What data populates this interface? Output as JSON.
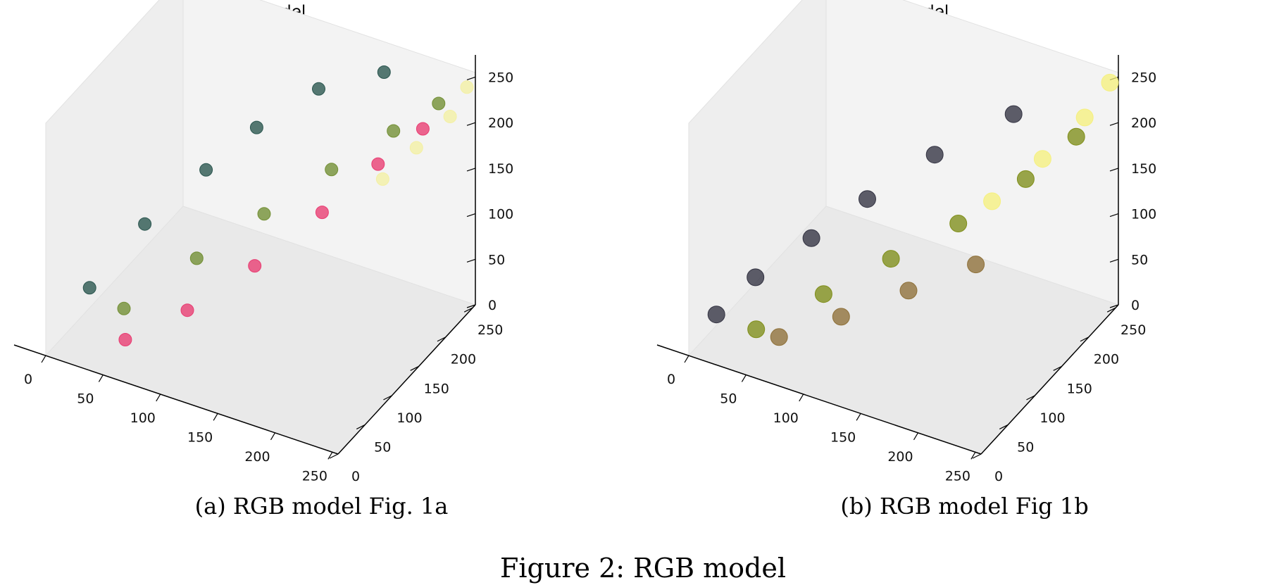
{
  "figure_caption": "Figure 2: RGB model",
  "chart_data": [
    {
      "type": "scatter",
      "title": "RGB model",
      "caption": "(a) RGB model Fig. 1a",
      "dimension": "3d",
      "x_ticks": [
        "0",
        "50",
        "100",
        "150",
        "200",
        "250"
      ],
      "y_ticks": [
        "0",
        "50",
        "100",
        "150",
        "200",
        "250"
      ],
      "z_ticks": [
        "0",
        "50",
        "100",
        "150",
        "200",
        "250"
      ],
      "xlim": [
        0,
        255
      ],
      "ylim": [
        0,
        255
      ],
      "zlim": [
        0,
        255
      ],
      "series": [
        {
          "color": "#1f4d46",
          "points": [
            [
              10,
              60,
              40
            ],
            [
              30,
              120,
              80
            ],
            [
              60,
              170,
              120
            ],
            [
              90,
              200,
              160
            ],
            [
              130,
              230,
              200
            ],
            [
              180,
              245,
              230
            ]
          ]
        },
        {
          "color": "#6b8a2a",
          "points": [
            [
              40,
              60,
              30
            ],
            [
              80,
              110,
              70
            ],
            [
              120,
              150,
              110
            ],
            [
              160,
              190,
              150
            ],
            [
              200,
              220,
              190
            ],
            [
              230,
              240,
              220
            ]
          ]
        },
        {
          "color": "#e8336b",
          "points": [
            [
              60,
              20,
              30
            ],
            [
              100,
              50,
              60
            ],
            [
              140,
              90,
              100
            ],
            [
              180,
              130,
              150
            ],
            [
              210,
              170,
              190
            ],
            [
              235,
              200,
              220
            ]
          ]
        },
        {
          "color": "#f3f0a0",
          "points": [
            [
              200,
              200,
              150
            ],
            [
              220,
              220,
              180
            ],
            [
              240,
              240,
              210
            ],
            [
              250,
              250,
              240
            ]
          ]
        }
      ]
    },
    {
      "type": "scatter",
      "title": "RGB model",
      "caption": "(b) RGB model Fig 1b",
      "dimension": "3d",
      "x_ticks": [
        "0",
        "50",
        "100",
        "150",
        "200",
        "250"
      ],
      "y_ticks": [
        "0",
        "50",
        "100",
        "150",
        "200",
        "250"
      ],
      "z_ticks": [
        "0",
        "50",
        "100",
        "150",
        "200",
        "250"
      ],
      "xlim": [
        0,
        255
      ],
      "ylim": [
        0,
        255
      ],
      "zlim": [
        0,
        255
      ],
      "series": [
        {
          "color": "#2a2a3a",
          "points": [
            [
              10,
              30,
              30
            ],
            [
              30,
              60,
              60
            ],
            [
              60,
              100,
              90
            ],
            [
              90,
              140,
              120
            ],
            [
              130,
              180,
              160
            ],
            [
              180,
              220,
              200
            ]
          ]
        },
        {
          "color": "#7a8a10",
          "points": [
            [
              40,
              40,
              20
            ],
            [
              80,
              80,
              50
            ],
            [
              120,
              120,
              80
            ],
            [
              160,
              160,
              110
            ],
            [
              200,
              200,
              150
            ],
            [
              230,
              230,
              190
            ]
          ]
        },
        {
          "color": "#f5f07a",
          "points": [
            [
              180,
              180,
              130
            ],
            [
              210,
              210,
              170
            ],
            [
              235,
              235,
              210
            ],
            [
              250,
              250,
              245
            ]
          ]
        },
        {
          "color": "#8a6a30",
          "points": [
            [
              60,
              40,
              20
            ],
            [
              100,
              70,
              40
            ],
            [
              140,
              110,
              60
            ],
            [
              180,
              150,
              80
            ]
          ]
        }
      ]
    }
  ]
}
